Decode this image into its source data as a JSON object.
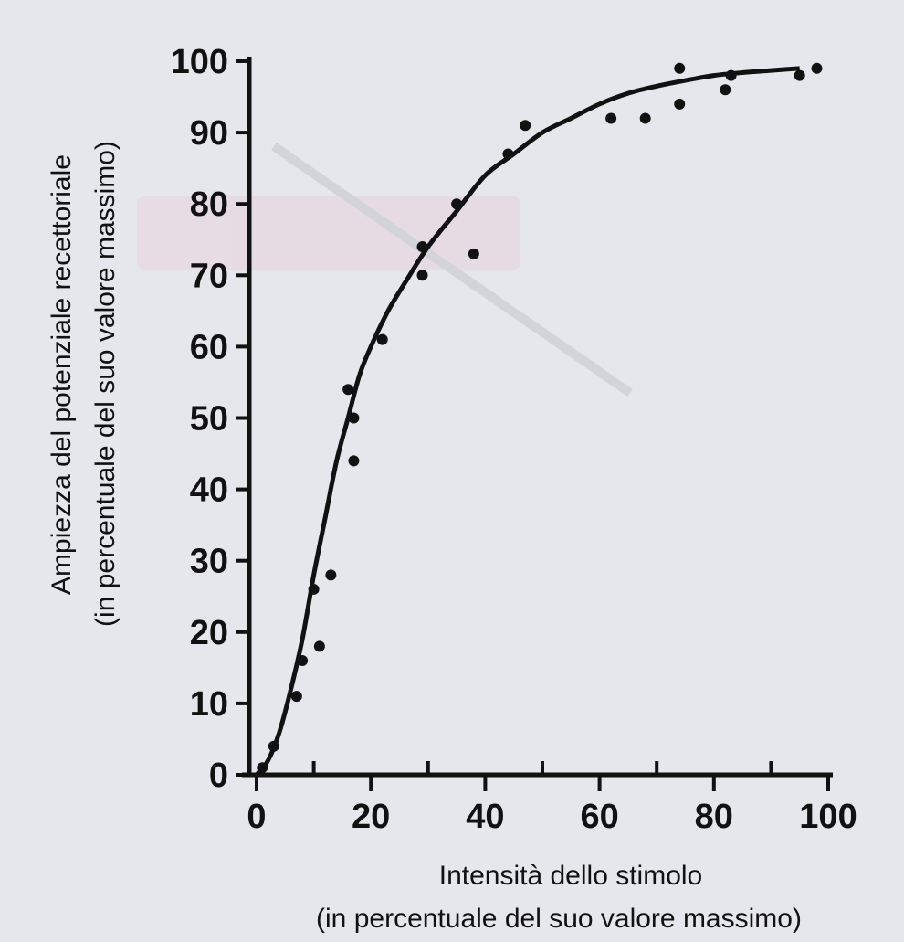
{
  "chart_data": {
    "type": "scatter",
    "xlabel_line1": "Intensità dello stimolo",
    "xlabel_line2": "(in percentuale del suo valore massimo)",
    "ylabel_line1": "Ampiezza del potenziale recettoriale",
    "ylabel_line2": "(in percentuale del suo valore massimo)",
    "xlim": [
      0,
      100
    ],
    "ylim": [
      0,
      100
    ],
    "x_ticks": [
      0,
      20,
      40,
      60,
      80,
      100
    ],
    "x_tick_labels": [
      "0",
      "20",
      "40",
      "60",
      "80",
      "100"
    ],
    "x_minor_ticks": [
      10,
      30,
      50,
      70,
      90
    ],
    "y_ticks": [
      0,
      10,
      20,
      30,
      40,
      50,
      60,
      70,
      80,
      90,
      100
    ],
    "y_tick_labels": [
      "0",
      "10",
      "20",
      "30",
      "40",
      "50",
      "60",
      "70",
      "80",
      "90",
      "100"
    ],
    "grid": false,
    "series": [
      {
        "kind": "points",
        "x": [
          1,
          3,
          7,
          8,
          10,
          11,
          13,
          16,
          17,
          17,
          22,
          29,
          29,
          35,
          38,
          44,
          47,
          62,
          68,
          74,
          74,
          82,
          83,
          95,
          98
        ],
        "y": [
          1,
          4,
          11,
          16,
          26,
          18,
          28,
          54,
          50,
          44,
          61,
          74,
          70,
          80,
          73,
          87,
          91,
          92,
          92,
          94,
          99,
          96,
          98,
          98,
          99
        ]
      },
      {
        "kind": "fitted-curve",
        "x": [
          0,
          2,
          4,
          6,
          8,
          10,
          12,
          14,
          16,
          18,
          20,
          23,
          26,
          30,
          35,
          40,
          45,
          50,
          55,
          60,
          65,
          70,
          75,
          80,
          85,
          90,
          95
        ],
        "y": [
          0,
          2,
          6,
          12,
          19,
          28,
          36,
          44,
          50,
          56,
          60,
          65,
          69,
          74,
          79,
          84,
          87,
          90,
          92,
          94,
          95.5,
          96.5,
          97.3,
          98,
          98.4,
          98.7,
          99
        ]
      }
    ],
    "colors": {
      "points": "#111111",
      "curve": "#111111",
      "axes": "#111111",
      "background": "#e6e6ed"
    }
  }
}
